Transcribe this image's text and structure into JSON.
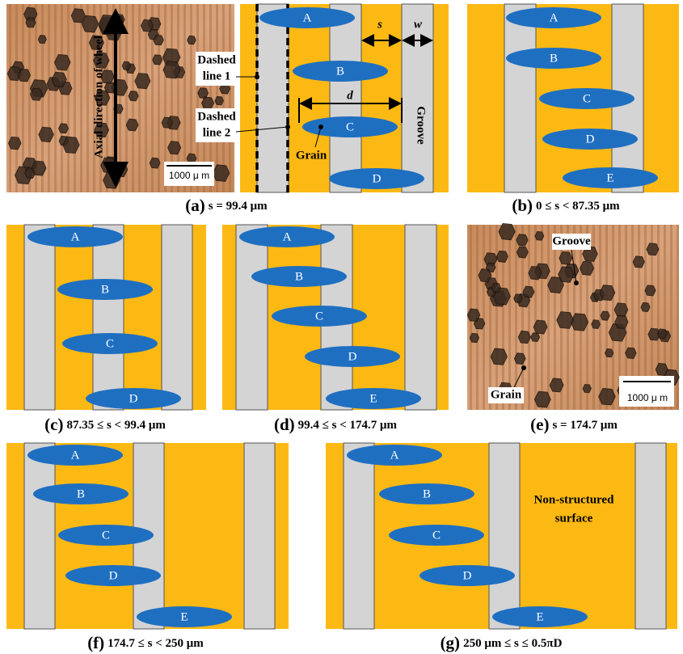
{
  "panels": [
    {
      "tag": "(a)",
      "caption": "s = 99.4 μm"
    },
    {
      "tag": "(b)",
      "caption": "0 ≤ s < 87.35 μm"
    },
    {
      "tag": "(c)",
      "caption": "87.35 ≤ s < 99.4 μm"
    },
    {
      "tag": "(d)",
      "caption": "99.4 ≤ s < 174.7 μm"
    },
    {
      "tag": "(e)",
      "caption": "s = 174.7 μm"
    },
    {
      "tag": "(f)",
      "caption": "174.7 ≤ s < 250 μm"
    },
    {
      "tag": "(g)",
      "caption": "250 μm ≤ s ≤ 0.5πD"
    }
  ],
  "photo_a": {
    "axis_label": "Axial direction of wheel",
    "scale_bar": "1000 μ m"
  },
  "photo_e": {
    "groove_label": "Groove",
    "grain_label": "Grain",
    "scale_bar": "1000 μ m"
  },
  "schematics": [
    {
      "grains": [
        "A",
        "B",
        "C",
        "D"
      ],
      "annotations": [
        "Dashed",
        "line 1",
        "Dashed",
        "line 2",
        "Grain",
        "Groove",
        "s",
        "w",
        "d"
      ]
    },
    {
      "grains": [
        "A",
        "B",
        "C",
        "D",
        "E"
      ],
      "annotations": []
    },
    {
      "grains": [
        "A",
        "B",
        "C",
        "D"
      ],
      "annotations": []
    },
    {
      "grains": [
        "A",
        "B",
        "C",
        "D",
        "E"
      ],
      "annotations": []
    },
    {
      "grains": [
        "A",
        "B",
        "C",
        "D",
        "E"
      ],
      "annotations": []
    },
    {
      "grains": [
        "A",
        "B",
        "C",
        "D",
        "E"
      ],
      "annotations": [
        "Non-structured",
        "surface"
      ]
    }
  ]
}
